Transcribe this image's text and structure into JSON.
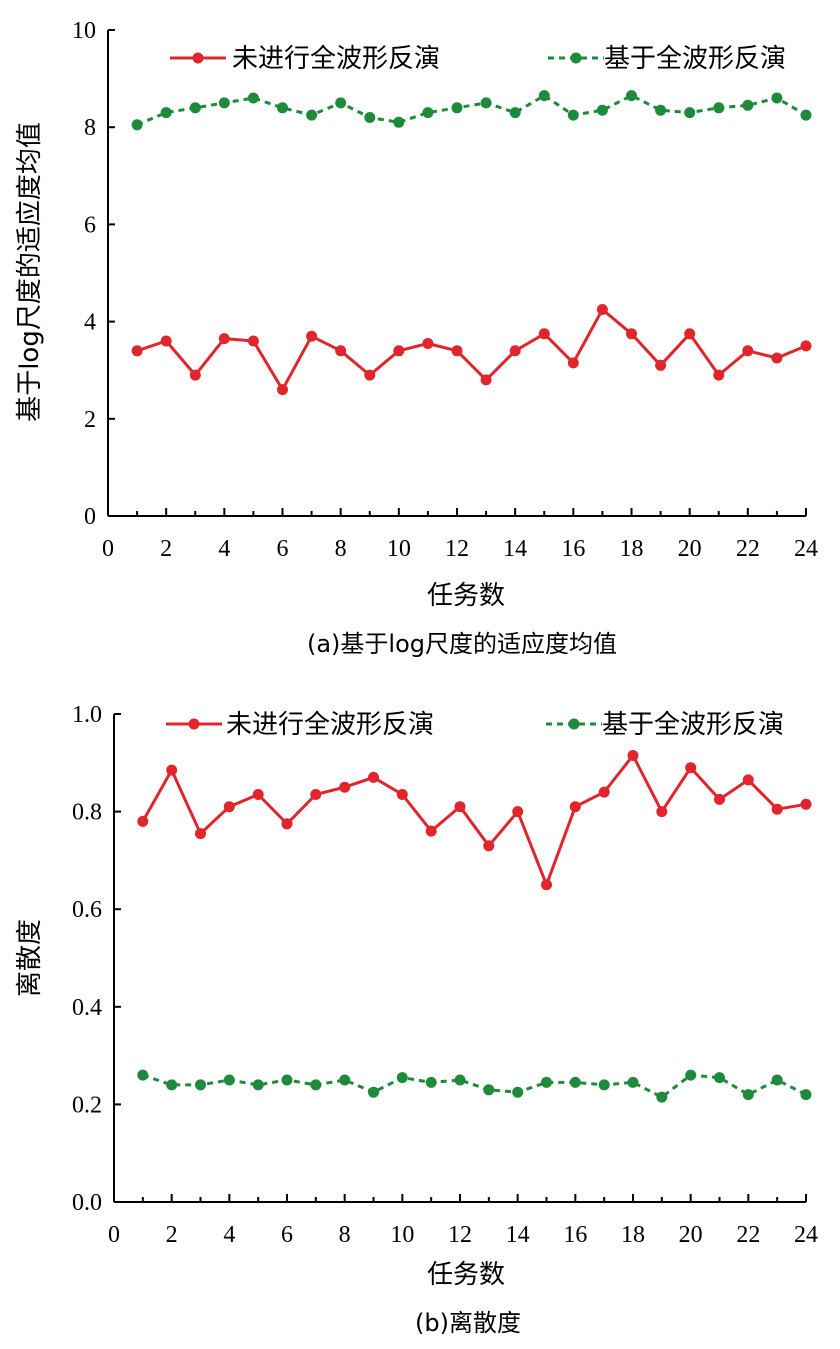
{
  "colors": {
    "series_red": "#e0262c",
    "series_green": "#1e8a3c",
    "axis": "#000000"
  },
  "chart_data": [
    {
      "type": "line",
      "caption": "(a)基于log尺度的适应度均值",
      "xlabel": "任务数",
      "ylabel": "基于log尺度的适应度均值",
      "xlim": [
        0,
        24
      ],
      "ylim": [
        0,
        10
      ],
      "xticks": [
        0,
        2,
        4,
        6,
        8,
        10,
        12,
        14,
        16,
        18,
        20,
        22,
        24
      ],
      "yticks": [
        0,
        2,
        4,
        6,
        8,
        10
      ],
      "xtick_labels": [
        "0",
        "2",
        "4",
        "6",
        "8",
        "10",
        "12",
        "14",
        "16",
        "18",
        "20",
        "22",
        "24"
      ],
      "ytick_labels": [
        "0",
        "2",
        "4",
        "6",
        "8",
        "10"
      ],
      "legend_position": "top",
      "x": [
        1,
        2,
        3,
        4,
        5,
        6,
        7,
        8,
        9,
        10,
        11,
        12,
        13,
        14,
        15,
        16,
        17,
        18,
        19,
        20,
        21,
        22,
        23,
        24
      ],
      "series": [
        {
          "name": "未进行全波形反演",
          "style": "solid",
          "color": "#e0262c",
          "values": [
            3.4,
            3.6,
            2.9,
            3.65,
            3.6,
            2.6,
            3.7,
            3.4,
            2.9,
            3.4,
            3.55,
            3.4,
            2.8,
            3.4,
            3.75,
            3.15,
            4.25,
            3.75,
            3.1,
            3.75,
            2.9,
            3.4,
            3.25,
            3.5
          ]
        },
        {
          "name": "基于全波形反演",
          "style": "dashed",
          "color": "#1e8a3c",
          "values": [
            8.05,
            8.3,
            8.4,
            8.5,
            8.6,
            8.4,
            8.25,
            8.5,
            8.2,
            8.1,
            8.3,
            8.4,
            8.5,
            8.3,
            8.65,
            8.25,
            8.35,
            8.65,
            8.35,
            8.3,
            8.4,
            8.45,
            8.6,
            8.25
          ]
        }
      ]
    },
    {
      "type": "line",
      "caption": "(b)离散度",
      "xlabel": "任务数",
      "ylabel": "离散度",
      "xlim": [
        0,
        24
      ],
      "ylim": [
        0,
        1.0
      ],
      "xticks": [
        0,
        2,
        4,
        6,
        8,
        10,
        12,
        14,
        16,
        18,
        20,
        22,
        24
      ],
      "yticks": [
        0,
        0.2,
        0.4,
        0.6,
        0.8,
        1.0
      ],
      "xtick_labels": [
        "0",
        "2",
        "4",
        "6",
        "8",
        "10",
        "12",
        "14",
        "16",
        "18",
        "20",
        "22",
        "24"
      ],
      "ytick_labels": [
        "0.0",
        "0.2",
        "0.4",
        "0.6",
        "0.8",
        "1.0"
      ],
      "legend_position": "top",
      "x": [
        1,
        2,
        3,
        4,
        5,
        6,
        7,
        8,
        9,
        10,
        11,
        12,
        13,
        14,
        15,
        16,
        17,
        18,
        19,
        20,
        21,
        22,
        23,
        24
      ],
      "series": [
        {
          "name": "未进行全波形反演",
          "style": "solid",
          "color": "#e0262c",
          "values": [
            0.78,
            0.885,
            0.755,
            0.81,
            0.835,
            0.775,
            0.835,
            0.85,
            0.87,
            0.835,
            0.76,
            0.81,
            0.73,
            0.8,
            0.65,
            0.81,
            0.84,
            0.915,
            0.8,
            0.89,
            0.825,
            0.865,
            0.805,
            0.815
          ]
        },
        {
          "name": "基于全波形反演",
          "style": "dashed",
          "color": "#1e8a3c",
          "values": [
            0.26,
            0.24,
            0.24,
            0.25,
            0.24,
            0.25,
            0.24,
            0.25,
            0.225,
            0.255,
            0.245,
            0.25,
            0.23,
            0.225,
            0.245,
            0.245,
            0.24,
            0.245,
            0.215,
            0.26,
            0.255,
            0.22,
            0.25,
            0.22
          ]
        }
      ]
    }
  ]
}
